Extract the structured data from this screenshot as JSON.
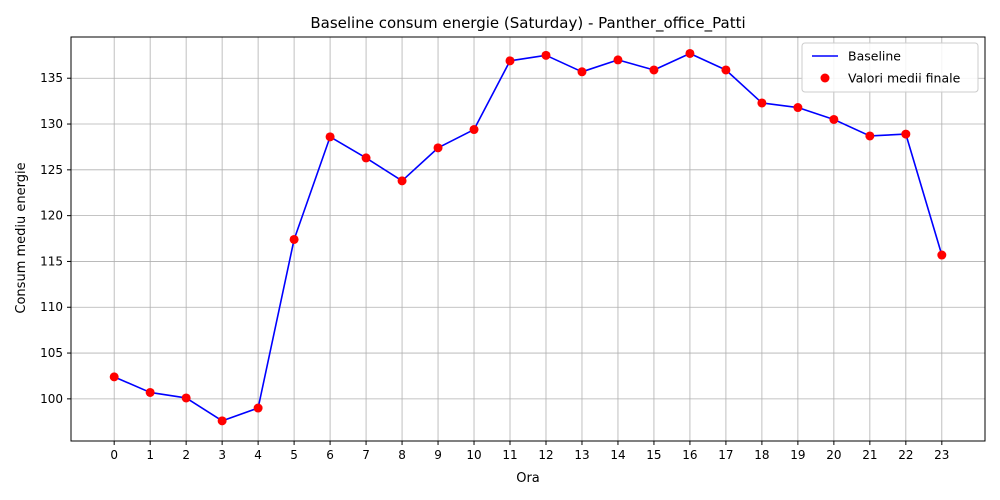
{
  "chart_data": {
    "type": "line",
    "title": "Baseline consum energie (Saturday) - Panther_office_Patti",
    "xlabel": "Ora",
    "ylabel": "Consum mediu energie",
    "x": [
      0,
      1,
      2,
      3,
      4,
      5,
      6,
      7,
      8,
      9,
      10,
      11,
      12,
      13,
      14,
      15,
      16,
      17,
      18,
      19,
      20,
      21,
      22,
      23
    ],
    "xticks": [
      "0",
      "1",
      "2",
      "3",
      "4",
      "5",
      "6",
      "7",
      "8",
      "9",
      "10",
      "11",
      "12",
      "13",
      "14",
      "15",
      "16",
      "17",
      "18",
      "19",
      "20",
      "21",
      "22",
      "23"
    ],
    "yticks": [
      "100",
      "105",
      "110",
      "115",
      "120",
      "125",
      "130",
      "135"
    ],
    "ytick_values": [
      100,
      105,
      110,
      115,
      120,
      125,
      130,
      135
    ],
    "xlim": [
      -1.2,
      24.2
    ],
    "ylim": [
      95.4,
      139.5
    ],
    "grid": true,
    "legend_position": "top-right",
    "series": [
      {
        "name": "Baseline",
        "kind": "line",
        "color": "#0000ff",
        "values": [
          102.4,
          100.7,
          100.1,
          97.6,
          99.0,
          117.4,
          128.6,
          126.3,
          123.8,
          127.4,
          129.4,
          136.9,
          137.5,
          135.7,
          137.0,
          135.9,
          137.7,
          135.9,
          132.3,
          131.8,
          130.5,
          128.7,
          128.9,
          115.7
        ]
      },
      {
        "name": "Valori medii finale",
        "kind": "scatter",
        "color": "#ff0000",
        "values": [
          102.4,
          100.7,
          100.1,
          97.6,
          99.0,
          117.4,
          128.6,
          126.3,
          123.8,
          127.4,
          129.4,
          136.9,
          137.5,
          135.7,
          137.0,
          135.9,
          137.7,
          135.9,
          132.3,
          131.8,
          130.5,
          128.7,
          128.9,
          115.7
        ]
      }
    ]
  }
}
